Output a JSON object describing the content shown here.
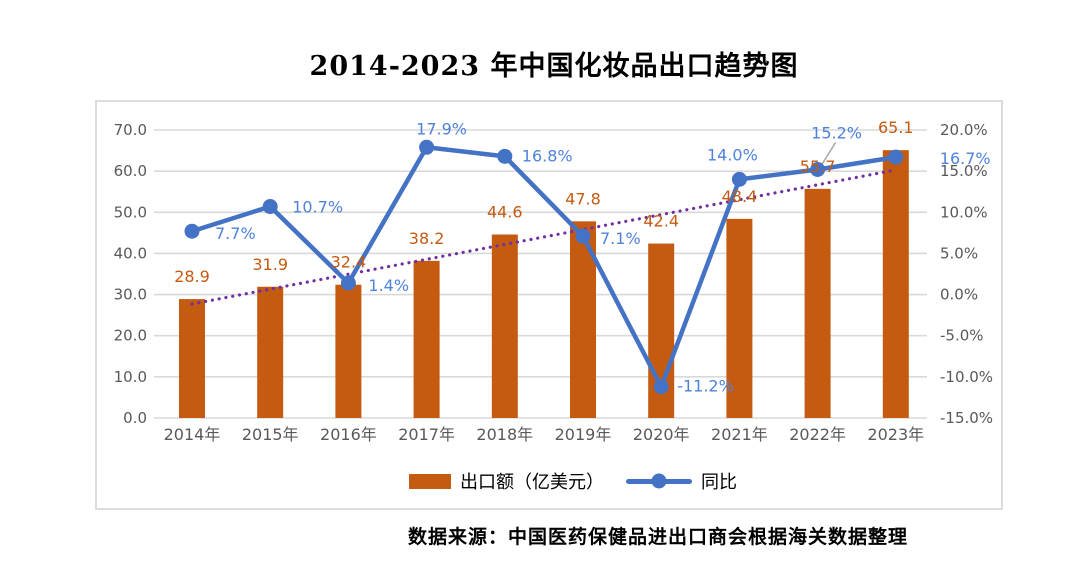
{
  "title": "2014-2023 年中国化妆品出口趋势图",
  "source": "数据来源：中国医药保健品进出口商会根据海关数据整理",
  "legend": {
    "bar_label": "出口额（亿美元）",
    "line_label": "同比"
  },
  "colors": {
    "bar": "#C55A11",
    "bar_label": "#C55A11",
    "line": "#4472C4",
    "line_label": "#4E82DB",
    "trendline": "#7030A0",
    "grid": "#D9D9D9",
    "axis_text": "#595959",
    "leader": "#A6A6A6",
    "frame_border": "#DCDCDC"
  },
  "chart_data": {
    "type": "bar+line",
    "title": "2014-2023 年中国化妆品出口趋势图",
    "categories": [
      "2014年",
      "2015年",
      "2016年",
      "2017年",
      "2018年",
      "2019年",
      "2020年",
      "2021年",
      "2022年",
      "2023年"
    ],
    "series": [
      {
        "name": "出口额（亿美元）",
        "type": "bar",
        "axis": "left",
        "color": "#C55A11",
        "values": [
          28.9,
          31.9,
          32.4,
          38.2,
          44.6,
          47.8,
          42.4,
          48.4,
          55.7,
          65.1
        ],
        "labels": [
          "28.9",
          "31.9",
          "32.4",
          "38.2",
          "44.6",
          "47.8",
          "42.4",
          "48.4",
          "55.7",
          "65.1"
        ]
      },
      {
        "name": "同比",
        "type": "line",
        "axis": "right",
        "color": "#4472C4",
        "label_color": "#4E82DB",
        "values": [
          7.7,
          10.7,
          1.4,
          17.9,
          16.8,
          7.1,
          -11.2,
          14.0,
          15.2,
          16.7
        ],
        "labels": [
          "7.7%",
          "10.7%",
          "1.4%",
          "17.9%",
          "16.8%",
          "7.1%",
          "-11.2%",
          "14.0%",
          "15.2%",
          "16.7%"
        ]
      }
    ],
    "left_axis": {
      "min": 0,
      "max": 70,
      "step": 10,
      "tick_labels": [
        "70.0",
        "60.0",
        "50.0",
        "40.0",
        "30.0",
        "20.0",
        "10.0",
        "0.0"
      ]
    },
    "right_axis": {
      "min": -15,
      "max": 20,
      "step": 5,
      "tick_labels": [
        "20.0%",
        "15.0%",
        "10.0%",
        "5.0%",
        "0.0%",
        "-5.0%",
        "-10.0%",
        "-15.0%"
      ]
    },
    "trendline": {
      "color": "#7030A0",
      "style": "dotted",
      "start_value": 27.7,
      "end_value": 60.3
    },
    "grid": true,
    "legend_position": "bottom",
    "legend_entries": [
      "出口额（亿美元）",
      "同比"
    ]
  }
}
